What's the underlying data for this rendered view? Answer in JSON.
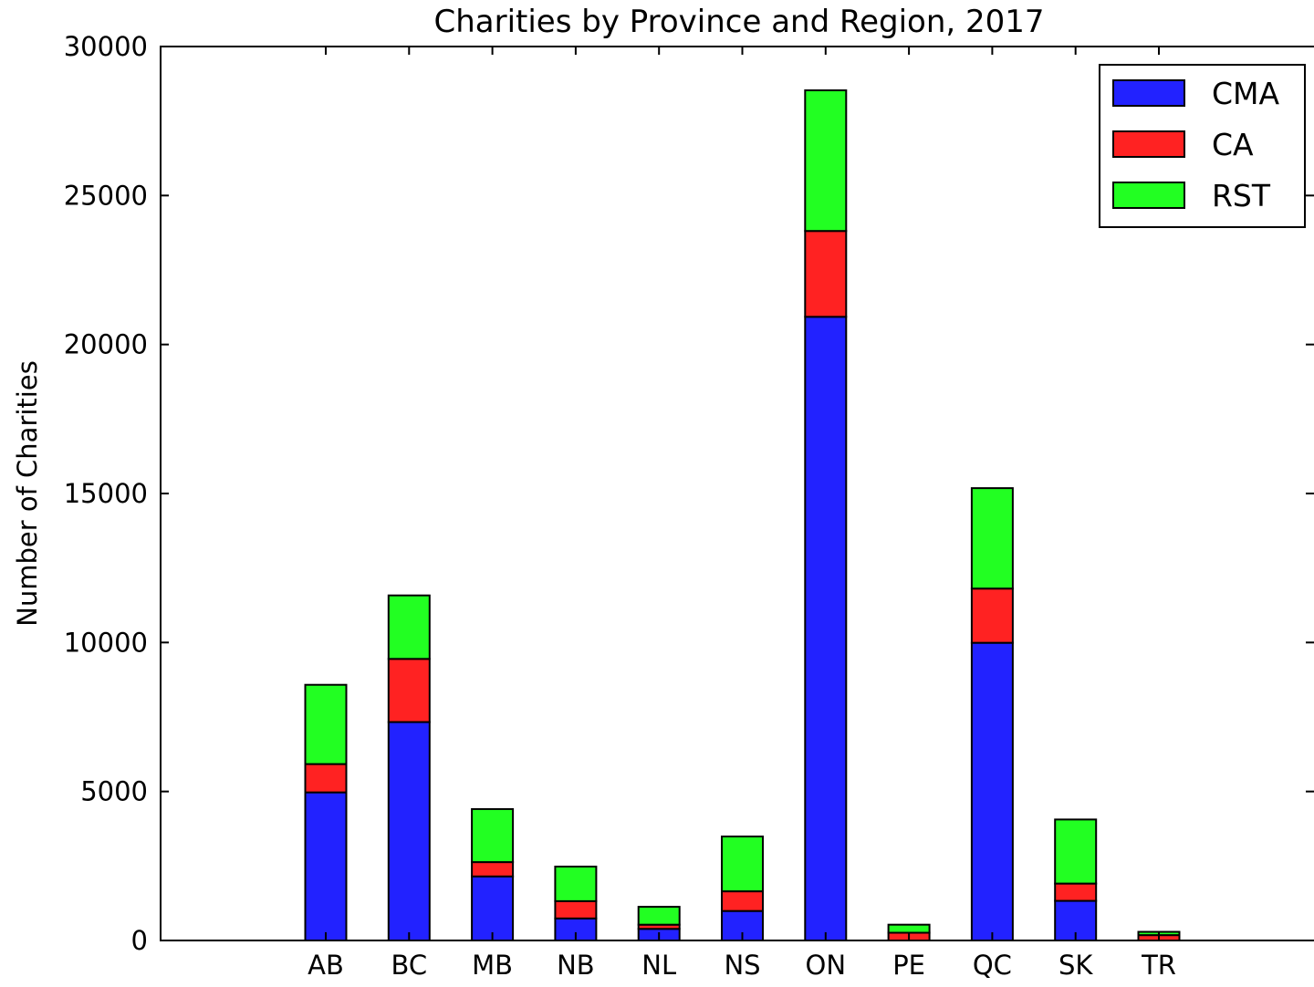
{
  "chart_data": {
    "type": "bar",
    "stacked": true,
    "title": "Charities by Province and Region, 2017",
    "xlabel": "",
    "ylabel": "Number of Charities",
    "ylim": [
      0,
      30000
    ],
    "yticks": [
      "0",
      "5000",
      "10000",
      "15000",
      "20000",
      "25000",
      "30000"
    ],
    "categories": [
      "AB",
      "BC",
      "MB",
      "NB",
      "NL",
      "NS",
      "ON",
      "PE",
      "QC",
      "SK",
      "TR"
    ],
    "series": [
      {
        "name": "CMA",
        "color": "#2222ff",
        "values": [
          4970,
          7330,
          2150,
          740,
          390,
          990,
          20930,
          0,
          9990,
          1330,
          0
        ]
      },
      {
        "name": "CA",
        "color": "#ff2222",
        "values": [
          950,
          2120,
          480,
          580,
          140,
          660,
          2880,
          260,
          1820,
          580,
          180
        ]
      },
      {
        "name": "RST",
        "color": "#22ff22",
        "values": [
          2660,
          2130,
          1780,
          1160,
          600,
          1840,
          4720,
          270,
          3370,
          2150,
          110
        ]
      }
    ],
    "legend": {
      "position": "top-right"
    },
    "grid": false
  }
}
